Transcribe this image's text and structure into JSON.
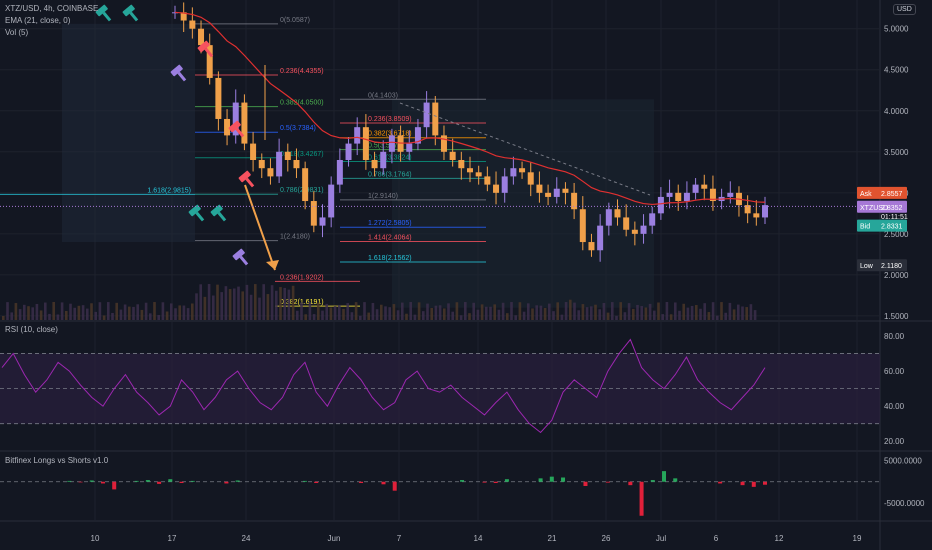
{
  "header": {
    "symbol": "XTZ/USD, 4h, COINBASE",
    "ema": "EMA (21, close, 0)",
    "vol": "Vol (5)",
    "rsi": "RSI (10, close)",
    "bitfinex": "Bitfinex Longs vs Shorts v1.0",
    "currency": "USD"
  },
  "colors": {
    "background": "#131722",
    "up": "#9b7fe0",
    "down": "#f0a04a",
    "ema": "#e03030",
    "rsi": "#9c27b0",
    "ask": "#e0532f",
    "last": "#a678d6",
    "bid": "#26a69a"
  },
  "chart_data": [
    {
      "type": "candlestick",
      "y_axis_ticks": [
        "5.0000",
        "4.5000",
        "4.0000",
        "3.5000",
        "3.0000",
        "2.5000",
        "2.0000",
        "1.5000"
      ],
      "x_axis_ticks": [
        "10",
        "17",
        "24",
        "Jun",
        "7",
        "14",
        "21",
        "26",
        "Jul",
        "6",
        "12",
        "19"
      ],
      "ylim": [
        1.45,
        5.35
      ],
      "close": [
        5.2,
        5.1,
        5.0,
        4.8,
        4.4,
        3.9,
        3.7,
        4.1,
        3.6,
        3.4,
        3.3,
        3.2,
        3.5,
        3.4,
        3.3,
        2.9,
        2.6,
        2.7,
        3.1,
        3.4,
        3.6,
        3.8,
        3.4,
        3.3,
        3.5,
        3.7,
        3.5,
        3.6,
        3.8,
        4.1,
        3.7,
        3.5,
        3.4,
        3.3,
        3.25,
        3.2,
        3.1,
        3.0,
        3.2,
        3.3,
        3.25,
        3.1,
        3.0,
        2.95,
        3.05,
        3.0,
        2.8,
        2.4,
        2.3,
        2.6,
        2.8,
        2.7,
        2.55,
        2.5,
        2.6,
        2.75,
        2.95,
        3.0,
        2.9,
        3.0,
        3.1,
        3.05,
        2.9,
        2.95,
        3.0,
        2.85,
        2.75,
        2.7,
        2.85
      ],
      "fib_levels": [
        {
          "label": "0(5.0587)",
          "value": 5.0587
        },
        {
          "label": "0.236(4.4355)",
          "value": 4.4355
        },
        {
          "label": "0.382(4.0500)",
          "value": 4.05
        },
        {
          "label": "0.5(3.7384)",
          "value": 3.7384
        },
        {
          "label": "0.618(3.4267)",
          "value": 3.4267
        },
        {
          "label": "0.786(2.9831)",
          "value": 2.9831
        },
        {
          "label": "1(2.4180)",
          "value": 2.418
        },
        {
          "label": "1.618(2.9815)",
          "value": 2.9815
        },
        {
          "label": "0(4.1403)",
          "value": 4.1403
        },
        {
          "label": "0.236(3.8509)",
          "value": 3.8509
        },
        {
          "label": "0.382(3.6718)",
          "value": 3.6718
        },
        {
          "label": "0.5(3.5271)",
          "value": 3.5271
        },
        {
          "label": "0.618(3.3824)",
          "value": 3.3824
        },
        {
          "label": "0.786(3.1764)",
          "value": 3.1764
        },
        {
          "label": "1(2.9140)",
          "value": 2.914
        },
        {
          "label": "1.272(2.5805)",
          "value": 2.5805
        },
        {
          "label": "1.414(2.4064)",
          "value": 2.4064
        },
        {
          "label": "1.618(2.1562)",
          "value": 2.1562
        },
        {
          "label": "0.236(1.9202)",
          "value": 1.9202
        },
        {
          "label": "0.382(1.6191)",
          "value": 1.6191
        }
      ],
      "price_labels": [
        {
          "label": "Ask",
          "value": "2.8557",
          "color": "#e0532f"
        },
        {
          "label": "XTZUSD",
          "value": "2.8352",
          "color": "#a678d6"
        },
        {
          "label": "Bid",
          "value": "2.8331",
          "color": "#26a69a"
        },
        {
          "label": "Low",
          "value": "2.1180",
          "color": "#2a2e39"
        }
      ],
      "countdown": "01:11:51"
    },
    {
      "type": "line",
      "title": "RSI (10, close)",
      "y_axis_ticks": [
        "80.00",
        "60.00",
        "40.00",
        "20.00"
      ],
      "ylim": [
        15,
        88
      ],
      "bands": [
        70,
        50,
        30
      ],
      "values": [
        62,
        70,
        58,
        48,
        55,
        65,
        60,
        52,
        45,
        40,
        50,
        58,
        48,
        42,
        35,
        40,
        55,
        48,
        38,
        45,
        55,
        60,
        50,
        42,
        38,
        45,
        58,
        65,
        48,
        40,
        52,
        62,
        55,
        45,
        38,
        42,
        55,
        60,
        50,
        48,
        52,
        45,
        40,
        35,
        42,
        48,
        38,
        30,
        25,
        32,
        48,
        55,
        50,
        45,
        60,
        70,
        78,
        62,
        55,
        50,
        58,
        68,
        55,
        48,
        42,
        38,
        45,
        52,
        62
      ]
    },
    {
      "type": "histogram",
      "title": "Bitfinex Longs vs Shorts v1.0",
      "y_axis_ticks": [
        "5000.0000",
        "-5000.0000"
      ],
      "ylim": [
        -9000,
        7000
      ],
      "values": [
        0,
        0,
        0,
        0,
        0,
        0,
        200,
        -150,
        300,
        -400,
        -1800,
        0,
        200,
        400,
        -500,
        600,
        -300,
        200,
        0,
        0,
        -400,
        300,
        0,
        0,
        0,
        0,
        0,
        200,
        -300,
        0,
        0,
        0,
        -300,
        0,
        -600,
        -2100,
        0,
        0,
        0,
        0,
        0,
        400,
        0,
        -200,
        -300,
        600,
        0,
        0,
        800,
        1200,
        1000,
        0,
        -1000,
        0,
        -200,
        0,
        -800,
        -8000,
        400,
        2500,
        800,
        0,
        0,
        0,
        -400,
        0,
        -800,
        -1200,
        -700
      ]
    }
  ]
}
